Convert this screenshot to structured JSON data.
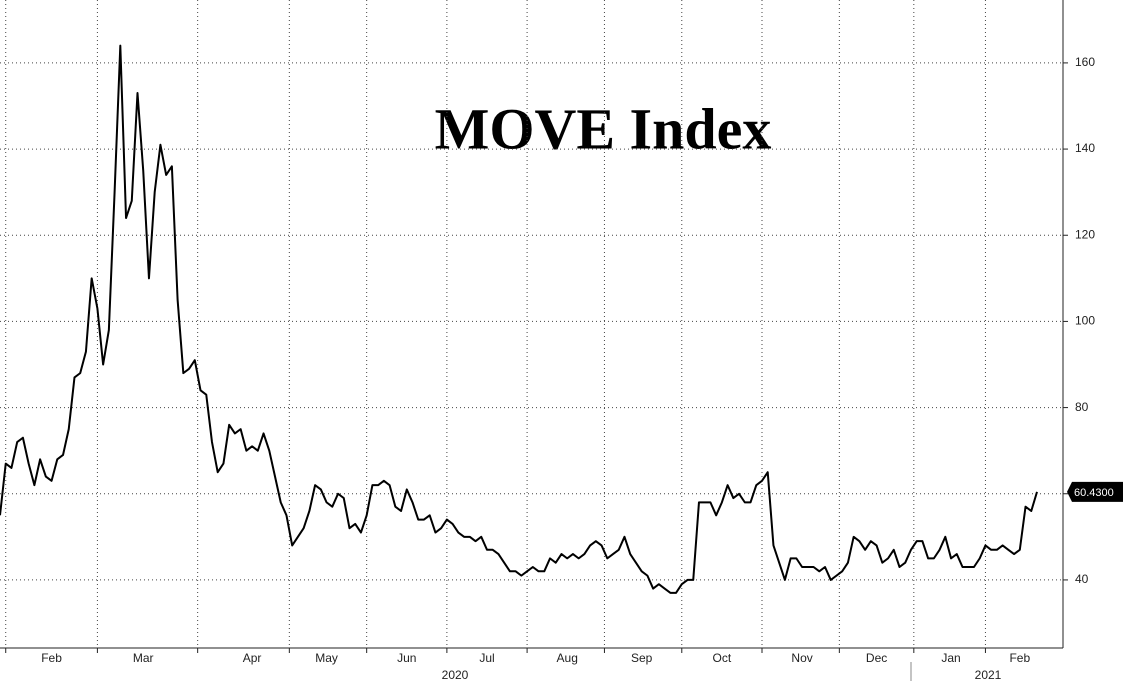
{
  "chart_data": {
    "type": "line",
    "title": "MOVE Index",
    "color": "#000000",
    "categories": [
      null,
      null,
      null,
      null,
      null,
      null,
      null,
      null,
      null,
      "Feb",
      null,
      null,
      null,
      null,
      null,
      null,
      null,
      null,
      null,
      null,
      null,
      null,
      null,
      null,
      null,
      "Mar",
      null,
      null,
      null,
      null,
      null,
      null,
      null,
      null,
      null,
      null,
      null,
      null,
      null,
      null,
      null,
      null,
      null,
      null,
      "Apr",
      null,
      null,
      null,
      null,
      null,
      null,
      null,
      null,
      null,
      null,
      null,
      null,
      "May",
      null,
      null,
      null,
      null,
      null,
      null,
      null,
      null,
      null,
      null,
      null,
      null,
      null,
      "Jun",
      null,
      null,
      null,
      null,
      null,
      null,
      null,
      null,
      null,
      null,
      null,
      null,
      null,
      "Jul",
      null,
      null,
      null,
      null,
      null,
      null,
      null,
      null,
      null,
      null,
      null,
      null,
      null,
      "Aug",
      null,
      null,
      null,
      null,
      null,
      null,
      null,
      null,
      null,
      null,
      null,
      null,
      "Sep",
      null,
      null,
      null,
      null,
      null,
      null,
      null,
      null,
      null,
      null,
      null,
      null,
      null,
      "Oct",
      null,
      null,
      null,
      null,
      null,
      null,
      null,
      null,
      null,
      null,
      null,
      null,
      null,
      "Nov",
      null,
      null,
      null,
      null,
      null,
      null,
      null,
      null,
      null,
      null,
      null,
      null,
      "Dec",
      null,
      null,
      null,
      null,
      null,
      null,
      null,
      null,
      null,
      null,
      null,
      null,
      "Jan",
      null,
      null,
      null,
      null,
      null,
      null,
      null,
      null,
      null,
      null,
      null,
      "Feb",
      null,
      null,
      null
    ],
    "values": [
      55,
      67,
      66,
      72,
      73,
      67,
      62,
      68,
      64,
      63,
      68,
      69,
      75,
      87,
      88,
      93,
      110,
      103,
      90,
      98,
      130,
      164,
      124,
      128,
      153,
      135,
      110,
      130,
      141,
      134,
      136,
      105,
      88,
      89,
      91,
      84,
      83,
      72,
      65,
      67,
      76,
      74,
      75,
      70,
      71,
      70,
      74,
      70,
      64,
      58,
      55,
      48,
      50,
      52,
      56,
      62,
      61,
      58,
      57,
      60,
      59,
      52,
      53,
      51,
      55,
      62,
      62,
      63,
      62,
      57,
      56,
      61,
      58,
      54,
      54,
      55,
      51,
      52,
      54,
      53,
      51,
      50,
      50,
      49,
      50,
      47,
      47,
      46,
      44,
      42,
      42,
      41,
      42,
      43,
      42,
      42,
      45,
      44,
      46,
      45,
      46,
      45,
      46,
      48,
      49,
      48,
      45,
      46,
      47,
      50,
      46,
      44,
      42,
      41,
      38,
      39,
      38,
      37,
      37,
      39,
      40,
      40,
      58,
      58,
      58,
      55,
      58,
      62,
      59,
      60,
      58,
      58,
      62,
      63,
      65,
      48,
      44,
      40,
      45,
      45,
      43,
      43,
      43,
      42,
      43,
      40,
      41,
      42,
      44,
      50,
      49,
      47,
      49,
      48,
      44,
      45,
      47,
      43,
      44,
      47,
      49,
      49,
      45,
      45,
      47,
      50,
      45,
      46,
      43,
      43,
      43,
      45,
      48,
      47,
      47,
      48,
      47,
      46,
      47,
      57,
      56,
      60.43
    ],
    "current_value": {
      "value": 60.43,
      "label": "60.4300"
    },
    "x_group_labels": [
      "2020",
      "2021"
    ],
    "ylim": [
      24.2,
      174.6
    ],
    "yticks": [
      40,
      60,
      80,
      100,
      120,
      140,
      160
    ],
    "grid": true,
    "y_axis_side": "right"
  }
}
